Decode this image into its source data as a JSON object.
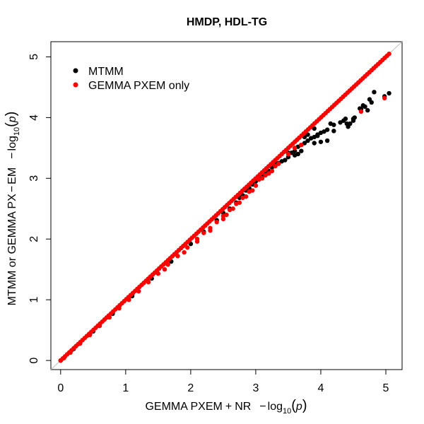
{
  "chart_data": {
    "type": "scatter",
    "title": "HMDP, HDL-TG",
    "xlabel": {
      "prefix": "GEMMA PXEM",
      "operator": "+",
      "mid": "NR",
      "minus": "−",
      "log": "log",
      "sub": "10",
      "lparen": "(",
      "var": "p",
      "rparen": ")"
    },
    "ylabel": {
      "prefix": "MTMM or GEMMA PX",
      "operator": "−",
      "mid": "EM",
      "minus": "−",
      "log": "log",
      "sub": "10",
      "lparen": "(",
      "var": "p",
      "rparen": ")"
    },
    "xlim": [
      -0.15,
      5.25
    ],
    "ylim": [
      -0.15,
      5.25
    ],
    "x_ticks": [
      "0",
      "1",
      "2",
      "3",
      "4",
      "5"
    ],
    "y_ticks": [
      "0",
      "1",
      "2",
      "3",
      "4",
      "5"
    ],
    "grid": false,
    "reference_line": {
      "type": "identity",
      "color": "#bfbfbf"
    },
    "legend": {
      "position": "top-left",
      "entries": [
        {
          "label": "MTMM",
          "color": "#000000"
        },
        {
          "label": "GEMMA PXEM only",
          "color": "#ff0000"
        }
      ]
    },
    "series": [
      {
        "name": "MTMM",
        "color": "#000000",
        "points": [
          [
            0.0,
            0.0
          ],
          [
            0.2,
            0.19
          ],
          [
            0.5,
            0.48
          ],
          [
            0.8,
            0.77
          ],
          [
            1.1,
            1.06
          ],
          [
            1.4,
            1.35
          ],
          [
            1.7,
            1.63
          ],
          [
            2.0,
            1.92
          ],
          [
            2.2,
            2.12
          ],
          [
            2.4,
            2.31
          ],
          [
            2.5,
            2.43
          ],
          [
            2.6,
            2.5
          ],
          [
            2.7,
            2.6
          ],
          [
            2.75,
            2.68
          ],
          [
            2.8,
            2.72
          ],
          [
            2.85,
            2.8
          ],
          [
            2.9,
            2.84
          ],
          [
            2.95,
            2.9
          ],
          [
            3.0,
            2.95
          ],
          [
            3.05,
            3.02
          ],
          [
            3.1,
            3.04
          ],
          [
            3.15,
            3.08
          ],
          [
            3.2,
            3.12
          ],
          [
            3.25,
            3.18
          ],
          [
            3.3,
            3.22
          ],
          [
            3.35,
            3.25
          ],
          [
            3.4,
            3.28
          ],
          [
            3.45,
            3.3
          ],
          [
            3.5,
            3.35
          ],
          [
            3.55,
            3.42
          ],
          [
            3.6,
            3.45
          ],
          [
            3.65,
            3.52
          ],
          [
            3.7,
            3.55
          ],
          [
            3.75,
            3.58
          ],
          [
            3.8,
            3.62
          ],
          [
            3.85,
            3.66
          ],
          [
            3.9,
            3.68
          ],
          [
            3.95,
            3.72
          ],
          [
            4.0,
            3.75
          ],
          [
            4.05,
            3.77
          ],
          [
            4.1,
            3.8
          ],
          [
            3.75,
            3.68
          ],
          [
            3.8,
            3.72
          ],
          [
            3.9,
            3.82
          ],
          [
            3.5,
            3.42
          ],
          [
            3.3,
            3.26
          ],
          [
            3.9,
            3.58
          ],
          [
            4.0,
            3.6
          ],
          [
            4.1,
            3.62
          ],
          [
            3.7,
            3.45
          ],
          [
            3.6,
            3.38
          ],
          [
            3.65,
            3.4
          ],
          [
            3.95,
            3.7
          ],
          [
            4.2,
            3.88
          ],
          [
            4.3,
            3.92
          ],
          [
            4.35,
            3.95
          ],
          [
            4.38,
            3.98
          ],
          [
            4.42,
            3.85
          ],
          [
            4.45,
            3.9
          ],
          [
            4.5,
            3.98
          ],
          [
            4.5,
            3.95
          ],
          [
            4.52,
            4.0
          ],
          [
            4.15,
            3.9
          ],
          [
            4.2,
            3.78
          ],
          [
            4.4,
            3.9
          ],
          [
            4.6,
            4.15
          ],
          [
            4.62,
            4.14
          ],
          [
            4.65,
            4.2
          ],
          [
            4.68,
            4.18
          ],
          [
            4.72,
            4.12
          ],
          [
            4.75,
            4.3
          ],
          [
            4.78,
            4.25
          ],
          [
            4.82,
            4.42
          ],
          [
            4.98,
            4.35
          ],
          [
            5.05,
            4.4
          ]
        ]
      },
      {
        "name": "GEMMA PXEM only",
        "color": "#ff0000",
        "identity_range": [
          0.0,
          5.05
        ],
        "identity_count": 150,
        "points": [
          [
            0.0,
            0.0
          ],
          [
            0.05,
            0.04
          ],
          [
            0.15,
            0.13
          ],
          [
            0.3,
            0.28
          ],
          [
            0.45,
            0.42
          ],
          [
            0.6,
            0.57
          ],
          [
            0.75,
            0.71
          ],
          [
            0.9,
            0.86
          ],
          [
            1.05,
            1.0
          ],
          [
            1.2,
            1.14
          ],
          [
            1.35,
            1.29
          ],
          [
            1.5,
            1.43
          ],
          [
            1.65,
            1.58
          ],
          [
            1.8,
            1.72
          ],
          [
            1.95,
            1.86
          ],
          [
            2.1,
            2.0
          ],
          [
            2.2,
            2.1
          ],
          [
            2.3,
            2.18
          ],
          [
            2.4,
            2.28
          ],
          [
            2.5,
            2.38
          ],
          [
            2.6,
            2.48
          ],
          [
            2.7,
            2.58
          ],
          [
            2.8,
            2.68
          ],
          [
            2.9,
            2.78
          ],
          [
            3.0,
            2.88
          ],
          [
            1.6,
            1.5
          ],
          [
            1.9,
            1.78
          ],
          [
            2.1,
            1.96
          ],
          [
            2.3,
            2.14
          ],
          [
            2.5,
            2.33
          ],
          [
            2.55,
            2.4
          ],
          [
            2.65,
            2.5
          ],
          [
            2.75,
            2.6
          ],
          [
            2.85,
            2.7
          ],
          [
            2.95,
            2.8
          ],
          [
            3.05,
            2.98
          ],
          [
            3.1,
            3.0
          ],
          [
            3.15,
            3.05
          ],
          [
            3.2,
            3.08
          ],
          [
            3.25,
            3.12
          ],
          [
            3.3,
            3.2
          ],
          [
            3.35,
            3.24
          ],
          [
            3.5,
            3.4
          ],
          [
            3.6,
            3.5
          ],
          [
            3.7,
            3.55
          ],
          [
            4.62,
            4.1
          ],
          [
            4.98,
            4.32
          ]
        ]
      }
    ]
  }
}
